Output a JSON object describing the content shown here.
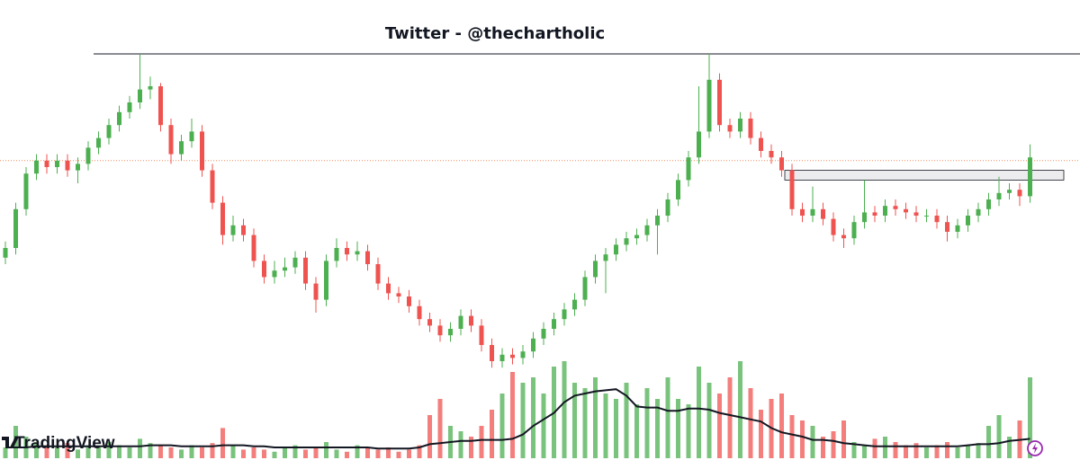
{
  "chart_data": {
    "type": "candlestick",
    "title": "Twitter - @thechartholic",
    "watermark": "TradingView",
    "up_color": "#4caf50",
    "down_color": "#ef5350",
    "ylim": [
      0,
      100
    ],
    "volume_lim": [
      0,
      100
    ],
    "resistance": 100,
    "level": 67,
    "zone": [
      61,
      64
    ],
    "candles": [
      [
        37,
        42,
        35,
        40
      ],
      [
        40,
        54,
        38,
        52
      ],
      [
        52,
        65,
        50,
        63
      ],
      [
        63,
        69,
        61,
        67
      ],
      [
        67,
        69,
        63,
        65
      ],
      [
        65,
        69,
        63,
        67
      ],
      [
        67,
        69,
        62,
        64
      ],
      [
        64,
        68,
        60,
        66
      ],
      [
        66,
        73,
        64,
        71
      ],
      [
        71,
        76,
        69,
        74
      ],
      [
        74,
        80,
        72,
        78
      ],
      [
        78,
        84,
        76,
        82
      ],
      [
        82,
        87,
        80,
        85
      ],
      [
        85,
        100,
        83,
        89
      ],
      [
        89,
        93,
        86,
        90
      ],
      [
        90,
        91,
        76,
        78
      ],
      [
        78,
        80,
        66,
        69
      ],
      [
        69,
        75,
        67,
        73
      ],
      [
        73,
        80,
        71,
        76
      ],
      [
        76,
        78,
        62,
        64
      ],
      [
        64,
        66,
        52,
        54
      ],
      [
        54,
        56,
        41,
        44
      ],
      [
        44,
        50,
        42,
        47
      ],
      [
        47,
        49,
        42,
        44
      ],
      [
        44,
        46,
        34,
        36
      ],
      [
        36,
        38,
        29,
        31
      ],
      [
        31,
        36,
        29,
        33
      ],
      [
        33,
        37,
        31,
        34
      ],
      [
        34,
        39,
        32,
        37
      ],
      [
        37,
        39,
        27,
        29
      ],
      [
        29,
        31,
        20,
        24
      ],
      [
        24,
        38,
        22,
        36
      ],
      [
        36,
        43,
        34,
        40
      ],
      [
        40,
        42,
        36,
        38
      ],
      [
        38,
        42,
        36,
        39
      ],
      [
        39,
        41,
        33,
        35
      ],
      [
        35,
        37,
        27,
        29
      ],
      [
        29,
        31,
        24,
        26
      ],
      [
        26,
        28,
        23,
        25
      ],
      [
        25,
        27,
        20,
        22
      ],
      [
        22,
        24,
        16,
        18
      ],
      [
        18,
        20,
        14,
        16
      ],
      [
        16,
        18,
        11,
        13
      ],
      [
        13,
        17,
        11,
        15
      ],
      [
        15,
        21,
        13,
        19
      ],
      [
        19,
        21,
        14,
        16
      ],
      [
        16,
        18,
        8,
        10
      ],
      [
        10,
        12,
        3,
        5
      ],
      [
        5,
        9,
        3,
        7
      ],
      [
        7,
        9,
        4,
        6
      ],
      [
        6,
        10,
        4,
        8
      ],
      [
        8,
        14,
        6,
        12
      ],
      [
        12,
        17,
        10,
        15
      ],
      [
        15,
        20,
        13,
        18
      ],
      [
        18,
        23,
        16,
        21
      ],
      [
        21,
        26,
        19,
        24
      ],
      [
        24,
        33,
        22,
        31
      ],
      [
        31,
        38,
        29,
        36
      ],
      [
        36,
        40,
        26,
        38
      ],
      [
        38,
        43,
        36,
        41
      ],
      [
        41,
        45,
        39,
        43
      ],
      [
        43,
        46,
        41,
        44
      ],
      [
        44,
        49,
        42,
        47
      ],
      [
        47,
        52,
        38,
        50
      ],
      [
        50,
        57,
        48,
        55
      ],
      [
        55,
        63,
        53,
        61
      ],
      [
        61,
        70,
        59,
        68
      ],
      [
        68,
        90,
        66,
        76
      ],
      [
        76,
        100,
        74,
        92
      ],
      [
        92,
        94,
        76,
        78
      ],
      [
        78,
        80,
        74,
        76
      ],
      [
        76,
        82,
        74,
        80
      ],
      [
        80,
        82,
        72,
        74
      ],
      [
        74,
        76,
        68,
        70
      ],
      [
        70,
        72,
        66,
        68
      ],
      [
        68,
        70,
        62,
        64
      ],
      [
        64,
        66,
        50,
        52
      ],
      [
        52,
        54,
        48,
        50
      ],
      [
        50,
        59,
        48,
        52
      ],
      [
        52,
        54,
        47,
        49
      ],
      [
        49,
        51,
        42,
        44
      ],
      [
        44,
        46,
        40,
        43
      ],
      [
        43,
        50,
        41,
        48
      ],
      [
        48,
        61,
        46,
        51
      ],
      [
        51,
        53,
        48,
        50
      ],
      [
        50,
        55,
        48,
        53
      ],
      [
        53,
        55,
        50,
        52
      ],
      [
        52,
        54,
        49,
        51
      ],
      [
        51,
        53,
        48,
        50
      ],
      [
        50,
        52,
        48,
        50
      ],
      [
        50,
        52,
        46,
        48
      ],
      [
        48,
        50,
        42,
        45
      ],
      [
        45,
        49,
        43,
        47
      ],
      [
        47,
        52,
        45,
        50
      ],
      [
        50,
        54,
        48,
        52
      ],
      [
        52,
        57,
        50,
        55
      ],
      [
        55,
        62,
        53,
        57
      ],
      [
        57,
        60,
        55,
        58
      ],
      [
        58,
        60,
        53,
        56
      ],
      [
        56,
        72,
        54,
        68
      ]
    ],
    "volume": [
      10,
      30,
      20,
      15,
      12,
      10,
      14,
      8,
      12,
      10,
      15,
      12,
      10,
      18,
      14,
      12,
      10,
      8,
      12,
      10,
      14,
      28,
      12,
      8,
      10,
      8,
      6,
      10,
      12,
      8,
      10,
      15,
      8,
      6,
      12,
      10,
      8,
      10,
      6,
      8,
      12,
      40,
      55,
      30,
      25,
      20,
      30,
      45,
      60,
      80,
      70,
      75,
      60,
      85,
      90,
      70,
      65,
      75,
      60,
      55,
      70,
      50,
      65,
      55,
      75,
      55,
      50,
      85,
      70,
      60,
      75,
      90,
      65,
      45,
      55,
      60,
      40,
      35,
      30,
      20,
      25,
      35,
      15,
      12,
      18,
      20,
      15,
      12,
      14,
      10,
      12,
      15,
      10,
      12,
      14,
      30,
      40,
      20,
      35,
      75
    ],
    "volume_ma": [
      10,
      10,
      10,
      11,
      11,
      11,
      11,
      11,
      11,
      11,
      11,
      11,
      11,
      11,
      12,
      12,
      12,
      11,
      11,
      11,
      11,
      12,
      12,
      12,
      11,
      11,
      10,
      10,
      10,
      10,
      10,
      10,
      10,
      10,
      10,
      10,
      9,
      9,
      9,
      9,
      10,
      13,
      14,
      15,
      16,
      16,
      17,
      17,
      17,
      18,
      22,
      30,
      36,
      42,
      52,
      58,
      60,
      62,
      63,
      64,
      58,
      48,
      47,
      47,
      44,
      44,
      46,
      46,
      45,
      42,
      40,
      38,
      36,
      34,
      28,
      24,
      22,
      20,
      17,
      17,
      16,
      14,
      13,
      12,
      11,
      11,
      11,
      11,
      11,
      11,
      11,
      11,
      11,
      12,
      13,
      13,
      14,
      16,
      17,
      18
    ]
  }
}
